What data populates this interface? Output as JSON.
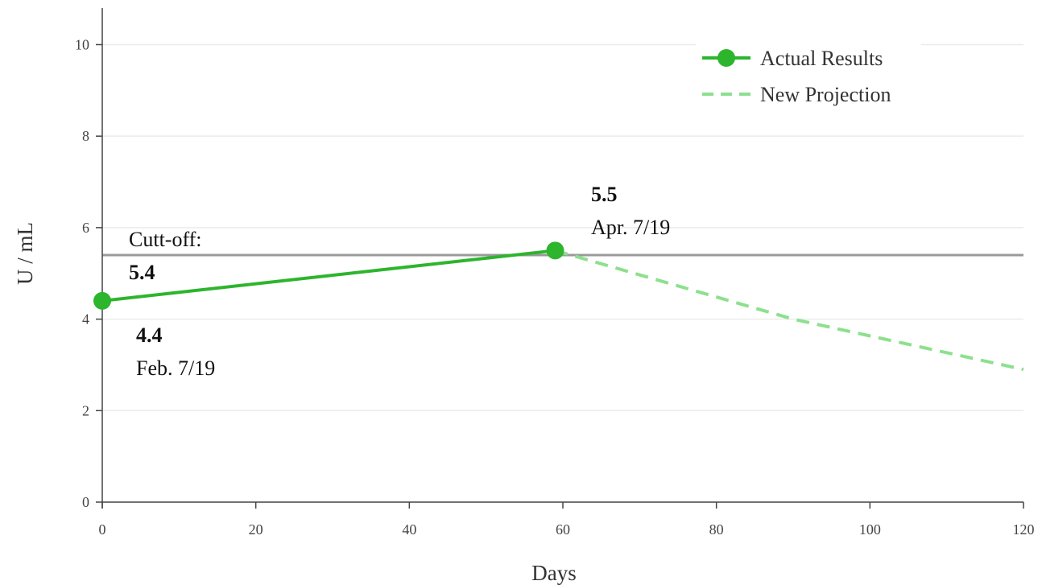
{
  "chart_data": {
    "type": "line",
    "xlabel": "Days",
    "ylabel": "U / mL",
    "xlim": [
      0,
      120
    ],
    "ylim": [
      0,
      10.8
    ],
    "xticks": [
      0,
      20,
      40,
      60,
      80,
      100,
      120
    ],
    "yticks": [
      0,
      2,
      4,
      6,
      8,
      10
    ],
    "grid": true,
    "legend_position": "top-right",
    "series": [
      {
        "name": "Actual Results",
        "style": "solid-markers",
        "color": "#2db52d",
        "x": [
          0,
          59
        ],
        "y": [
          4.4,
          5.5
        ]
      },
      {
        "name": "New Projection",
        "style": "dashed",
        "color": "#8de08d",
        "x": [
          59,
          90,
          120
        ],
        "y": [
          5.5,
          4.0,
          2.9
        ]
      }
    ],
    "reference_line": {
      "y": 5.4,
      "color": "#9a9a9a"
    },
    "annotations": [
      {
        "x": 0,
        "y": 4.4,
        "value": "4.4",
        "date": "Feb. 7/19"
      },
      {
        "x": 59,
        "y": 5.5,
        "value": "5.5",
        "date": "Apr. 7/19"
      },
      {
        "x": 0,
        "y": 5.4,
        "value": "5.4",
        "label": "Cutt-off:"
      }
    ]
  }
}
